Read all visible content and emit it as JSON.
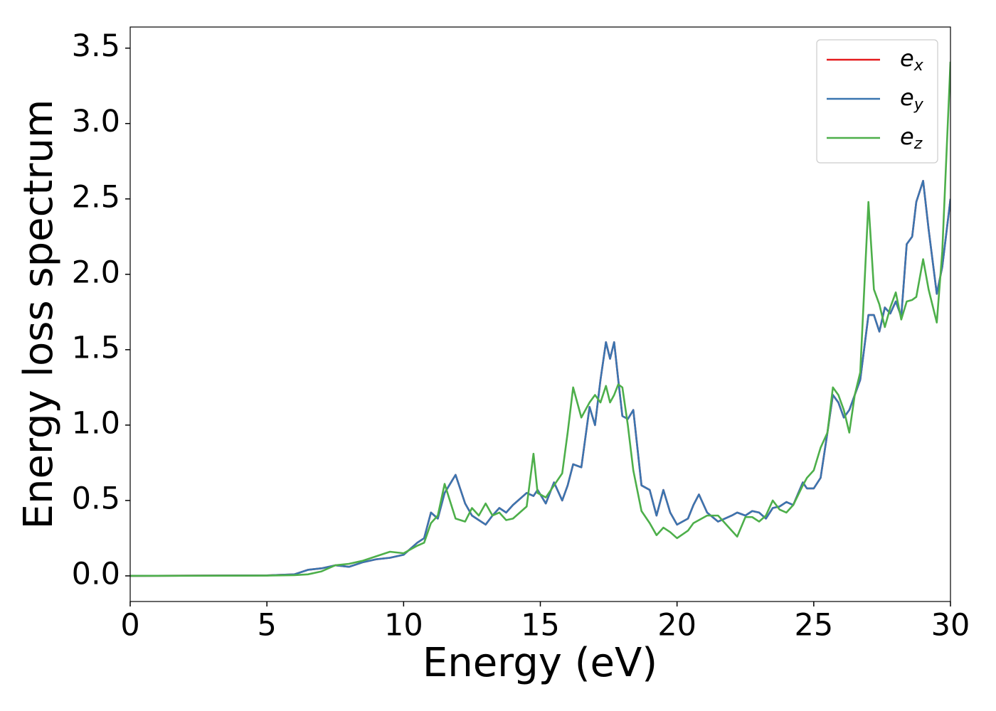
{
  "chart_data": {
    "type": "line",
    "xlabel": "Energy (eV)",
    "ylabel": "Energy loss spectrum",
    "x": [
      0,
      5,
      6,
      6.5,
      7,
      7.5,
      8,
      8.5,
      9,
      9.5,
      10,
      10.5,
      10.75,
      11,
      11.25,
      11.5,
      11.9,
      12.25,
      12.5,
      12.75,
      13,
      13.25,
      13.5,
      13.75,
      14,
      14.5,
      14.75,
      14.9,
      15.2,
      15.5,
      15.8,
      16,
      16.2,
      16.5,
      16.8,
      17,
      17.2,
      17.4,
      17.55,
      17.7,
      17.85,
      18,
      18.2,
      18.4,
      18.7,
      19,
      19.25,
      19.5,
      19.75,
      20,
      20.4,
      20.6,
      20.8,
      21.1,
      21.5,
      22,
      22.2,
      22.5,
      22.75,
      23,
      23.25,
      23.5,
      23.75,
      24,
      24.25,
      24.6,
      24.75,
      25,
      25.25,
      25.5,
      25.7,
      25.9,
      26.1,
      26.3,
      26.5,
      26.7,
      27,
      27.2,
      27.4,
      27.6,
      27.8,
      28,
      28.2,
      28.4,
      28.6,
      28.75,
      29,
      29.2,
      29.5,
      29.7,
      30
    ],
    "series": [
      {
        "name": "e_x",
        "color": "#e41a1c",
        "values": [
          0,
          0.003,
          0.01,
          0.04,
          0.05,
          0.07,
          0.06,
          0.09,
          0.11,
          0.12,
          0.14,
          0.22,
          0.25,
          0.42,
          0.38,
          0.55,
          0.67,
          0.48,
          0.4,
          0.37,
          0.34,
          0.4,
          0.45,
          0.42,
          0.47,
          0.55,
          0.53,
          0.57,
          0.48,
          0.62,
          0.5,
          0.6,
          0.74,
          0.72,
          1.12,
          1.0,
          1.3,
          1.55,
          1.44,
          1.55,
          1.3,
          1.06,
          1.04,
          1.1,
          0.6,
          0.57,
          0.4,
          0.57,
          0.42,
          0.34,
          0.38,
          0.47,
          0.54,
          0.42,
          0.36,
          0.4,
          0.42,
          0.4,
          0.43,
          0.42,
          0.38,
          0.45,
          0.46,
          0.49,
          0.47,
          0.62,
          0.58,
          0.58,
          0.65,
          0.95,
          1.2,
          1.15,
          1.05,
          1.1,
          1.2,
          1.3,
          1.73,
          1.73,
          1.62,
          1.78,
          1.74,
          1.82,
          1.72,
          2.2,
          2.25,
          2.48,
          2.62,
          2.3,
          1.87,
          2.05,
          2.5
        ]
      },
      {
        "name": "e_y",
        "color": "#3a75b0",
        "values": [
          0,
          0.003,
          0.01,
          0.04,
          0.05,
          0.07,
          0.06,
          0.09,
          0.11,
          0.12,
          0.14,
          0.22,
          0.25,
          0.42,
          0.38,
          0.55,
          0.67,
          0.48,
          0.4,
          0.37,
          0.34,
          0.4,
          0.45,
          0.42,
          0.47,
          0.55,
          0.53,
          0.57,
          0.48,
          0.62,
          0.5,
          0.6,
          0.74,
          0.72,
          1.12,
          1.0,
          1.3,
          1.55,
          1.44,
          1.55,
          1.3,
          1.06,
          1.04,
          1.1,
          0.6,
          0.57,
          0.4,
          0.57,
          0.42,
          0.34,
          0.38,
          0.47,
          0.54,
          0.42,
          0.36,
          0.4,
          0.42,
          0.4,
          0.43,
          0.42,
          0.38,
          0.45,
          0.46,
          0.49,
          0.47,
          0.62,
          0.58,
          0.58,
          0.65,
          0.95,
          1.2,
          1.15,
          1.05,
          1.1,
          1.2,
          1.3,
          1.73,
          1.73,
          1.62,
          1.78,
          1.74,
          1.82,
          1.72,
          2.2,
          2.25,
          2.48,
          2.62,
          2.3,
          1.87,
          2.05,
          2.5
        ]
      },
      {
        "name": "e_z",
        "color": "#4daf4a",
        "values": [
          0,
          0.002,
          0.005,
          0.01,
          0.03,
          0.07,
          0.08,
          0.1,
          0.13,
          0.16,
          0.15,
          0.2,
          0.22,
          0.35,
          0.4,
          0.61,
          0.38,
          0.36,
          0.45,
          0.4,
          0.48,
          0.4,
          0.42,
          0.37,
          0.38,
          0.46,
          0.81,
          0.55,
          0.52,
          0.6,
          0.68,
          0.95,
          1.25,
          1.05,
          1.15,
          1.2,
          1.15,
          1.26,
          1.15,
          1.2,
          1.27,
          1.25,
          1.0,
          0.7,
          0.43,
          0.35,
          0.27,
          0.32,
          0.29,
          0.25,
          0.3,
          0.35,
          0.37,
          0.4,
          0.4,
          0.3,
          0.26,
          0.39,
          0.39,
          0.36,
          0.4,
          0.5,
          0.44,
          0.42,
          0.47,
          0.6,
          0.65,
          0.7,
          0.85,
          0.95,
          1.25,
          1.2,
          1.1,
          0.95,
          1.2,
          1.35,
          2.48,
          1.9,
          1.8,
          1.65,
          1.78,
          1.88,
          1.7,
          1.82,
          1.83,
          1.85,
          2.1,
          1.9,
          1.68,
          2.15,
          3.41
        ]
      }
    ],
    "xlim": [
      0,
      30
    ],
    "xticks": [
      0,
      5,
      10,
      15,
      20,
      25,
      30
    ],
    "ylim": [
      -0.17,
      3.64
    ],
    "yticks": [
      {
        "value": 0,
        "label": "0.0"
      },
      0.5,
      {
        "value": 1,
        "label": "1.0"
      },
      1.5,
      {
        "value": 2,
        "label": "2.0"
      },
      2.5,
      {
        "value": 3,
        "label": "3.0"
      },
      3.5
    ],
    "grid": false,
    "legend": "upper right"
  }
}
